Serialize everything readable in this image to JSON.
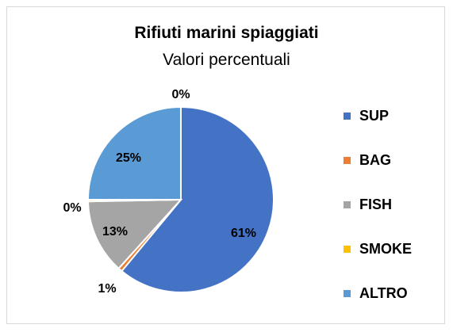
{
  "chart_data": {
    "type": "pie",
    "title": "Rifiuti marini spiaggiati",
    "subtitle": "Valori percentuali",
    "categories": [
      "SUP",
      "BAG",
      "FISH",
      "SMOKE",
      "ALTRO"
    ],
    "values": [
      61,
      1,
      13,
      0,
      25
    ],
    "exact_values": [
      61,
      0.7,
      13,
      0.3,
      25
    ],
    "data_labels": [
      "61%",
      "1%",
      "13%",
      "0%",
      "25%"
    ],
    "top_label": "0%",
    "colors": [
      "#4472C4",
      "#ED7D31",
      "#A5A5A5",
      "#FFC000",
      "#5B9BD5"
    ],
    "legend_position": "right"
  }
}
